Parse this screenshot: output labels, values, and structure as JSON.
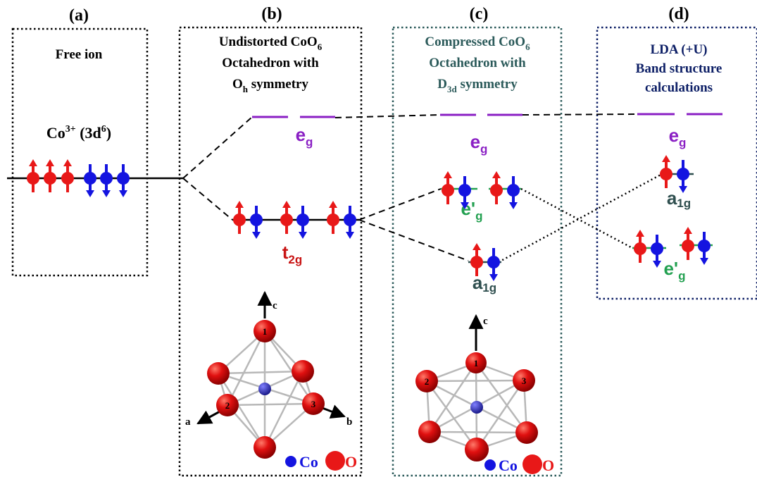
{
  "panels": {
    "a": {
      "tag": "(a)",
      "heading": [
        "Free ion"
      ],
      "config_base": "Co",
      "config_charge": "3+",
      "config_orbital": " (3d",
      "config_count": "6",
      "config_close": ")"
    },
    "b": {
      "tag": "(b)",
      "heading_line1_base": "Undistorted CoO",
      "heading_line1_sub": "6",
      "heading_line2": "Octahedron with",
      "heading_line3_base": "O",
      "heading_line3_sub": "h",
      "heading_line3_rest": " symmetry"
    },
    "c": {
      "tag": "(c)",
      "heading_line1_base": "Compressed CoO",
      "heading_line1_sub": "6",
      "heading_line2": "Octahedron with",
      "heading_line3_base": "D",
      "heading_line3_sub": "3d",
      "heading_line3_rest": " symmetry"
    },
    "d": {
      "tag": "(d)",
      "heading": [
        "LDA (+U)",
        "Band structure",
        "calculations"
      ]
    }
  },
  "levels": {
    "eg": {
      "base": "e",
      "sub": "g"
    },
    "t2g": {
      "base": "t",
      "sub": "2g"
    },
    "a1g": {
      "base": "a",
      "sup": "1",
      "sub": "g"
    },
    "egp": {
      "base": "e'",
      "sub": "g"
    }
  },
  "structures": {
    "b": {
      "axes": [
        "c",
        "a",
        "b"
      ],
      "atoms": [
        "1",
        "2",
        "3"
      ]
    },
    "c": {
      "axes": [
        "c"
      ],
      "atoms": [
        "1",
        "2",
        "3"
      ]
    }
  },
  "legend": {
    "co": "Co",
    "o": "O"
  },
  "colors": {
    "eg": "#8a1fc4",
    "t2g": "#c81414",
    "a1g": "#2f4f4f",
    "egp": "#22a050",
    "spin_up": "#e81818",
    "spin_down": "#1414e0",
    "panel_c_title": "#2b5a5a",
    "panel_d_title": "#0d1f66",
    "panel_d_border": "#0d1f66",
    "panel_c_border": "#2b5a5a"
  }
}
